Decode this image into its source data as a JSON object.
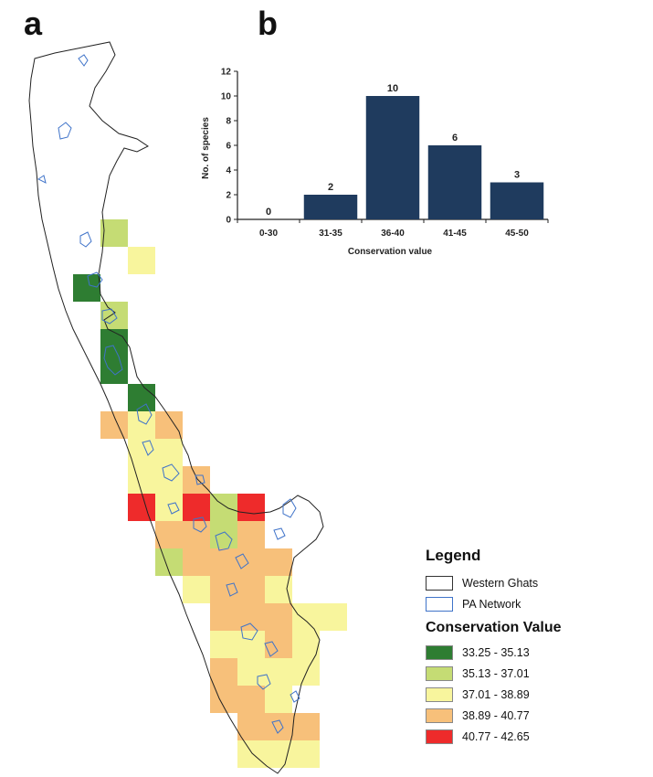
{
  "panels": {
    "a": "a",
    "b": "b"
  },
  "chart_data": {
    "type": "bar",
    "categories": [
      "0-30",
      "31-35",
      "36-40",
      "41-45",
      "45-50"
    ],
    "values": [
      0,
      2,
      10,
      6,
      3
    ],
    "data_labels": [
      "0",
      "2",
      "10",
      "6",
      "3"
    ],
    "xlabel": "Conservation value",
    "ylabel": "No. of species",
    "ylim": [
      0,
      12
    ],
    "yticks": [
      0,
      2,
      4,
      6,
      8,
      10,
      12
    ],
    "bar_color": "#1f3b5e",
    "grid": false
  },
  "map": {
    "cells": [
      {
        "col": 1,
        "row": 0,
        "cls": 1
      },
      {
        "col": 2,
        "row": 1,
        "cls": 2
      },
      {
        "col": 0,
        "row": 2,
        "cls": 0
      },
      {
        "col": 1,
        "row": 3,
        "cls": 1
      },
      {
        "col": 1,
        "row": 4,
        "cls": 0
      },
      {
        "col": 1,
        "row": 5,
        "cls": 0
      },
      {
        "col": 2,
        "row": 6,
        "cls": 0
      },
      {
        "col": 1,
        "row": 7,
        "cls": 3
      },
      {
        "col": 2,
        "row": 7,
        "cls": 2
      },
      {
        "col": 3,
        "row": 7,
        "cls": 3
      },
      {
        "col": 2,
        "row": 8,
        "cls": 2
      },
      {
        "col": 3,
        "row": 8,
        "cls": 2
      },
      {
        "col": 2,
        "row": 9,
        "cls": 2
      },
      {
        "col": 3,
        "row": 9,
        "cls": 2
      },
      {
        "col": 4,
        "row": 9,
        "cls": 3
      },
      {
        "col": 2,
        "row": 10,
        "cls": 4
      },
      {
        "col": 3,
        "row": 10,
        "cls": 2
      },
      {
        "col": 4,
        "row": 10,
        "cls": 4
      },
      {
        "col": 5,
        "row": 10,
        "cls": 1
      },
      {
        "col": 6,
        "row": 10,
        "cls": 4
      },
      {
        "col": 3,
        "row": 11,
        "cls": 3
      },
      {
        "col": 4,
        "row": 11,
        "cls": 3
      },
      {
        "col": 5,
        "row": 11,
        "cls": 1
      },
      {
        "col": 6,
        "row": 11,
        "cls": 3
      },
      {
        "col": 3,
        "row": 12,
        "cls": 1
      },
      {
        "col": 4,
        "row": 12,
        "cls": 3
      },
      {
        "col": 5,
        "row": 12,
        "cls": 3
      },
      {
        "col": 6,
        "row": 12,
        "cls": 3
      },
      {
        "col": 7,
        "row": 12,
        "cls": 3
      },
      {
        "col": 4,
        "row": 13,
        "cls": 2
      },
      {
        "col": 5,
        "row": 13,
        "cls": 3
      },
      {
        "col": 6,
        "row": 13,
        "cls": 3
      },
      {
        "col": 7,
        "row": 13,
        "cls": 2
      },
      {
        "col": 5,
        "row": 14,
        "cls": 3
      },
      {
        "col": 6,
        "row": 14,
        "cls": 3
      },
      {
        "col": 7,
        "row": 14,
        "cls": 3
      },
      {
        "col": 8,
        "row": 14,
        "cls": 2
      },
      {
        "col": 9,
        "row": 14,
        "cls": 2
      },
      {
        "col": 5,
        "row": 15,
        "cls": 2
      },
      {
        "col": 6,
        "row": 15,
        "cls": 2
      },
      {
        "col": 7,
        "row": 15,
        "cls": 3
      },
      {
        "col": 8,
        "row": 15,
        "cls": 2
      },
      {
        "col": 5,
        "row": 16,
        "cls": 3
      },
      {
        "col": 6,
        "row": 16,
        "cls": 2
      },
      {
        "col": 7,
        "row": 16,
        "cls": 2
      },
      {
        "col": 8,
        "row": 16,
        "cls": 2
      },
      {
        "col": 5,
        "row": 17,
        "cls": 3
      },
      {
        "col": 6,
        "row": 17,
        "cls": 3
      },
      {
        "col": 7,
        "row": 17,
        "cls": 2
      },
      {
        "col": 6,
        "row": 18,
        "cls": 3
      },
      {
        "col": 7,
        "row": 18,
        "cls": 3
      },
      {
        "col": 8,
        "row": 18,
        "cls": 3
      },
      {
        "col": 6,
        "row": 19,
        "cls": 2
      },
      {
        "col": 7,
        "row": 19,
        "cls": 2
      },
      {
        "col": 8,
        "row": 19,
        "cls": 2
      }
    ]
  },
  "legend": {
    "title": "Legend",
    "layers": [
      {
        "label": "Western  Ghats",
        "stroke": "#333333"
      },
      {
        "label": "PA  Network",
        "stroke": "#3f73c9"
      }
    ],
    "cv_title": "Conservation Value",
    "classes": [
      {
        "label": "33.25 - 35.13",
        "color": "#2e7d32"
      },
      {
        "label": "35.13 - 37.01",
        "color": "#c5dc74"
      },
      {
        "label": "37.01 - 38.89",
        "color": "#f8f59d"
      },
      {
        "label": "38.89 - 40.77",
        "color": "#f7c07a"
      },
      {
        "label": "40.77 - 42.65",
        "color": "#ee2b2b"
      }
    ]
  }
}
